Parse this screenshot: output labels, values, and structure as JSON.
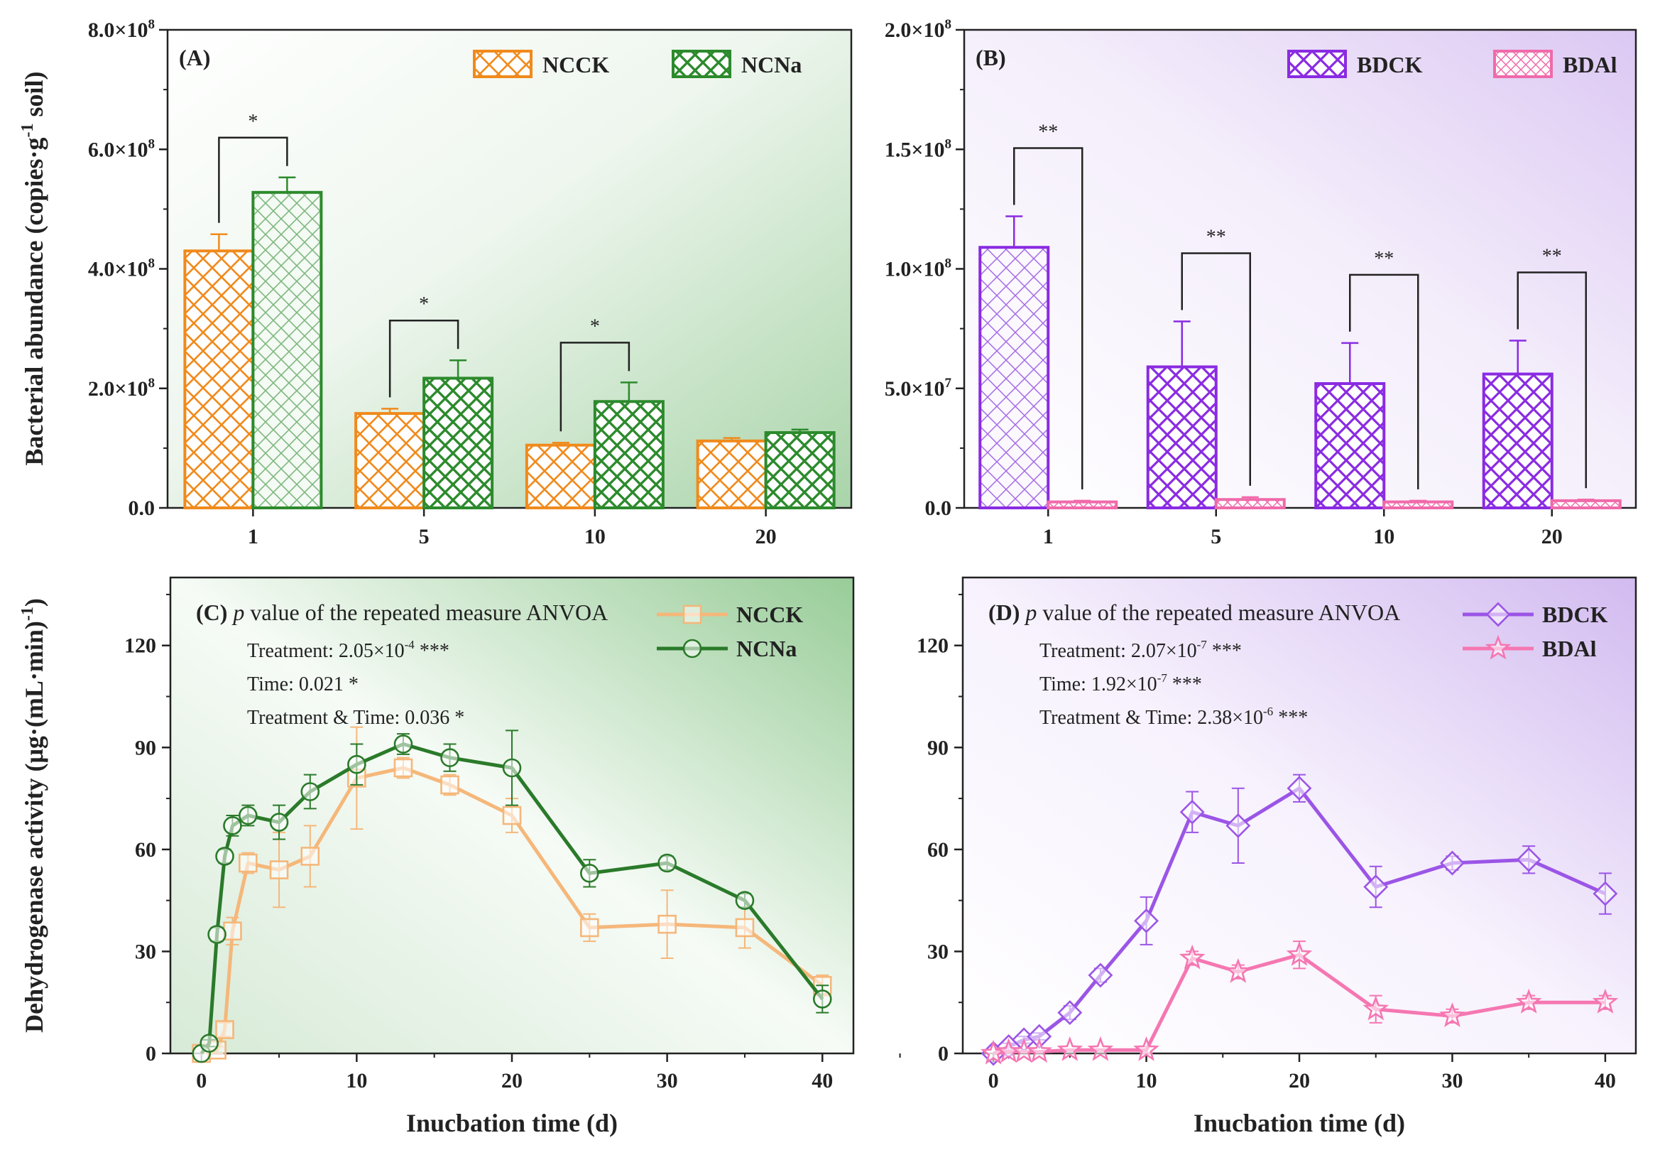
{
  "figure": {
    "axis_titles": {
      "top_y_label_main": "Bacterial abundance (copies·g",
      "top_y_label_sup": "-1",
      "top_y_label_end": " soil)",
      "bottom_y_label_main": "Dehydrogenase activity (μg·(mL·min)",
      "bottom_y_label_sup": "-1",
      "bottom_y_label_end": ")"
    }
  },
  "chart_data": [
    {
      "id": "A",
      "type": "bar",
      "panel_label": "(A)",
      "categories": [
        "1",
        "5",
        "10",
        "20"
      ],
      "ylim": [
        0,
        800000000
      ],
      "yticks": [
        {
          "value": 0,
          "label": "0.0"
        },
        {
          "value": 200000000,
          "label": "2.0×10",
          "exp": "8"
        },
        {
          "value": 400000000,
          "label": "4.0×10",
          "exp": "8"
        },
        {
          "value": 600000000,
          "label": "6.0×10",
          "exp": "8"
        },
        {
          "value": 800000000,
          "label": "8.0×10",
          "exp": "8"
        }
      ],
      "ylabel": "Bacterial abundance (copies·g-1 soil)",
      "series": [
        {
          "name": "NCCK",
          "color": "#f08a1c",
          "values": [
            430000000,
            158000000,
            105000000,
            112000000
          ],
          "errors": [
            28000000,
            8000000,
            4000000,
            5000000
          ]
        },
        {
          "name": "NCNa",
          "color": "#2c8a2c",
          "values": [
            528000000,
            217000000,
            178000000,
            126000000
          ],
          "errors": [
            25000000,
            30000000,
            32000000,
            5000000
          ]
        }
      ],
      "significance": [
        {
          "category": "1",
          "label": "*"
        },
        {
          "category": "5",
          "label": "*"
        },
        {
          "category": "10",
          "label": "*"
        }
      ],
      "legend_position": "top-right"
    },
    {
      "id": "B",
      "type": "bar",
      "panel_label": "(B)",
      "categories": [
        "1",
        "5",
        "10",
        "20"
      ],
      "ylim": [
        0,
        200000000
      ],
      "yticks": [
        {
          "value": 0,
          "label": "0.0"
        },
        {
          "value": 50000000,
          "label": "5.0×10",
          "exp": "7"
        },
        {
          "value": 100000000,
          "label": "1.0×10",
          "exp": "8"
        },
        {
          "value": 150000000,
          "label": "1.5×10",
          "exp": "8"
        },
        {
          "value": 200000000,
          "label": "2.0×10",
          "exp": "8"
        }
      ],
      "series": [
        {
          "name": "BDCK",
          "color": "#8a2be2",
          "values": [
            109000000,
            59000000,
            52000000,
            56000000
          ],
          "errors": [
            13000000,
            19000000,
            17000000,
            14000000
          ]
        },
        {
          "name": "BDAl",
          "color": "#f06aaa",
          "values": [
            2500000,
            3500000,
            2500000,
            3000000
          ],
          "errors": [
            500000,
            1000000,
            500000,
            500000
          ]
        }
      ],
      "significance": [
        {
          "category": "1",
          "label": "**"
        },
        {
          "category": "5",
          "label": "**"
        },
        {
          "category": "10",
          "label": "**"
        },
        {
          "category": "20",
          "label": "**"
        }
      ],
      "legend_position": "top-right"
    },
    {
      "id": "C",
      "type": "line",
      "panel_label": "(C)",
      "xlim": [
        -2,
        42
      ],
      "xticks": [
        0,
        10,
        20,
        30,
        40
      ],
      "xlabel": "Inucbation time (d)",
      "ylim": [
        0,
        140
      ],
      "yticks": [
        0,
        30,
        60,
        90,
        120
      ],
      "ylabel": "Dehydrogenase activity (μg·(mL·min)-1)",
      "annotations": {
        "title_italic": "p",
        "title_rest": " value of the repeated measure ANVOA",
        "lines": [
          {
            "text": "Treatment: 2.05×10",
            "exp": "-4",
            "after": " ***"
          },
          {
            "text": "Time: 0.021 *",
            "exp": "",
            "after": ""
          },
          {
            "text": "Treatment & Time: 0.036 *",
            "exp": "",
            "after": ""
          }
        ]
      },
      "series": [
        {
          "name": "NCCK",
          "color": "#f5b77a",
          "marker": "square",
          "x": [
            0,
            1,
            1.5,
            2,
            3,
            5,
            7,
            10,
            13,
            16,
            20,
            25,
            30,
            35,
            40
          ],
          "y": [
            0,
            1,
            7,
            36,
            56,
            54,
            58,
            81,
            84,
            79,
            70,
            37,
            38,
            37,
            20
          ],
          "errors": [
            0,
            1,
            2,
            4,
            3,
            11,
            9,
            15,
            3,
            3,
            5,
            4,
            10,
            6,
            3
          ]
        },
        {
          "name": "NCNa",
          "color": "#2a7a2a",
          "marker": "circle",
          "x": [
            0,
            0.5,
            1,
            1.5,
            2,
            3,
            5,
            7,
            10,
            13,
            16,
            20,
            25,
            30,
            35,
            40
          ],
          "y": [
            0,
            3,
            35,
            58,
            67,
            70,
            68,
            77,
            85,
            91,
            87,
            84,
            53,
            56,
            45,
            16
          ],
          "errors": [
            0,
            1,
            2,
            2,
            3,
            3,
            5,
            5,
            6,
            3,
            4,
            11,
            4,
            2,
            2,
            4
          ]
        }
      ],
      "legend_position": "top-right"
    },
    {
      "id": "D",
      "type": "line",
      "panel_label": "(D)",
      "xlim": [
        -2,
        42
      ],
      "xticks": [
        0,
        10,
        20,
        30,
        40
      ],
      "xlabel": "Inucbation time (d)",
      "ylim": [
        0,
        140
      ],
      "yticks": [
        0,
        30,
        60,
        90,
        120
      ],
      "annotations": {
        "title_italic": "p",
        "title_rest": " value of the repeated measure ANVOA",
        "lines": [
          {
            "text": "Treatment: 2.07×10",
            "exp": "-7",
            "after": " ***"
          },
          {
            "text": "Time: 1.92×10",
            "exp": "-7",
            "after": "  ***"
          },
          {
            "text": "Treatment & Time: 2.38×10",
            "exp": "-6",
            "after": " ***"
          }
        ]
      },
      "series": [
        {
          "name": "BDCK",
          "color": "#9b55e6",
          "marker": "diamond",
          "x": [
            0,
            1,
            2,
            3,
            5,
            7,
            10,
            13,
            16,
            20,
            25,
            30,
            35,
            40
          ],
          "y": [
            0,
            2,
            4,
            5,
            12,
            23,
            39,
            71,
            67,
            78,
            49,
            56,
            57,
            47
          ],
          "errors": [
            0,
            1,
            1,
            1,
            2,
            2,
            7,
            6,
            11,
            4,
            6,
            2,
            4,
            6
          ]
        },
        {
          "name": "BDAl",
          "color": "#f577b2",
          "marker": "star",
          "x": [
            0,
            1,
            2,
            3,
            5,
            7,
            10,
            13,
            16,
            20,
            25,
            30,
            35,
            40
          ],
          "y": [
            0,
            0.5,
            0.5,
            0.5,
            1,
            1,
            1,
            28,
            24,
            29,
            13,
            11,
            15,
            15
          ],
          "errors": [
            0,
            0,
            0,
            0,
            0,
            0,
            1,
            2,
            2,
            4,
            4,
            2,
            2,
            2
          ]
        }
      ],
      "legend_position": "top-right"
    }
  ]
}
